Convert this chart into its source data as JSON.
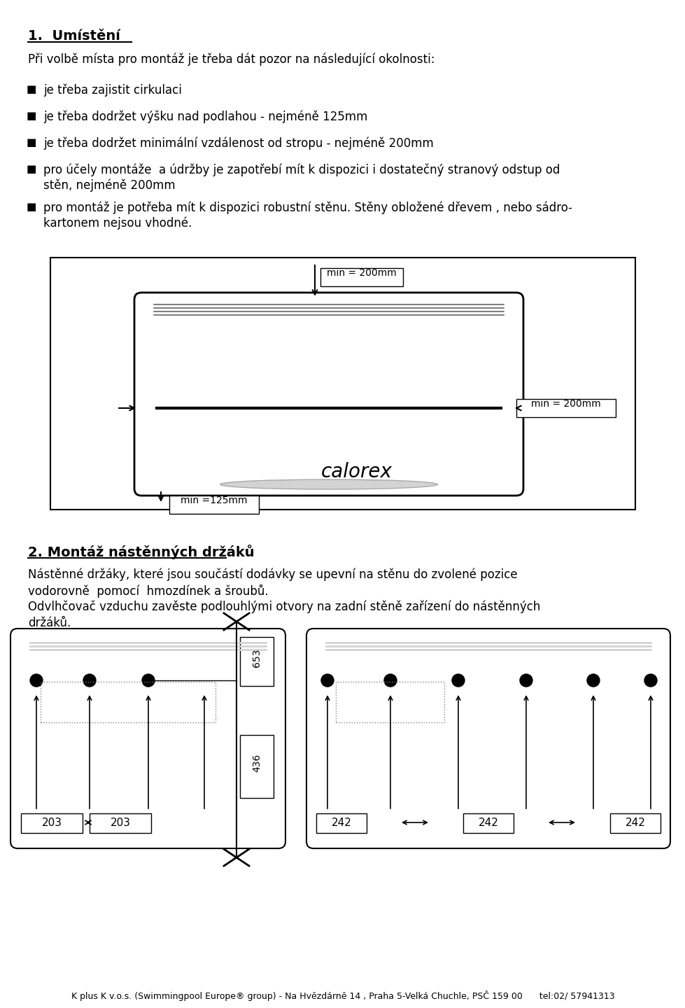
{
  "title1": "1.  Umístění",
  "intro": "Při volbě místa pro montáž je třeba dát pozor na následující okolnosti:",
  "bullets": [
    "je třeba zajistit cirkulaci",
    "je třeba dodržet výšku nad podlahou - nejméně 125mm",
    "je třeba dodržet minimální vzdálenost od stropu - nejméně 200mm",
    "pro účely montáže  a údržby je zapotřebí mít k dispozici i dostatečný stranový odstup od stěn, nejméně 200mm",
    "pro montáž je potřeba mít k dispozici robustní stěnu. Stěny obložené dřevem , nebo sádro-\nkartonem nejsou vhodné."
  ],
  "label_top": "min = 200mm",
  "label_right": "min = 200mm",
  "label_bottom": "min =125mm",
  "label_calorex": "calorex",
  "title2": "2. Montáž nástěnných držáků",
  "para2_line1": "Nástěnné držáky, které jsou součástí dodávky se upevní na stěnu do zvolené pozice",
  "para2_line2": "vodorovně  pomocí  hmozdínek a šroubů.",
  "para2_line3": "Odvlhčovač vzduchu zavěste podlouhlými otvory na zadní stěně zařízení do nástěnných",
  "para2_line4": "držáků.",
  "footer": "K plus K v.o.s. (Swimmingpool Europe® group) - Na Hvězdárně 14 , Praha 5-Velká Chuchle, PSČ 159 00      tel:02/ 57941313",
  "bg_color": "#ffffff",
  "text_color": "#000000",
  "border_color": "#000000"
}
